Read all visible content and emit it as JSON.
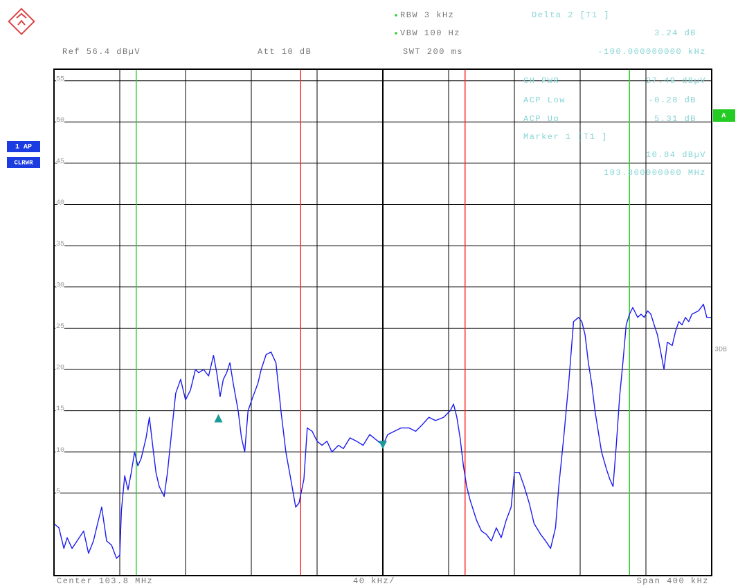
{
  "chart_data": {
    "type": "line",
    "annotations": {
      "rbw": "RBW 3 kHz",
      "vbw": "VBW 100 Hz",
      "swt": "SWT 200 ms",
      "ref": "Ref 56.4 dBµV",
      "att": "Att 10 dB",
      "delta_title": "Delta 2 [T1 ]",
      "delta_value": "3.24 dB",
      "delta_freq": "-100.000000000 kHz",
      "ch_pwr_label": "CH PWR",
      "ch_pwr_value": "27.49 dBµV",
      "acp_low_label": "ACP Low",
      "acp_low_value": "-0.28 dB",
      "acp_up_label": "ACP Up",
      "acp_up_value": "5.31 dB",
      "marker_title": "Marker 1 [T1 ]",
      "marker_value": "10.84 dBµV",
      "marker_freq": "103.800000000 MHz",
      "trace_mode_1": "1 AP",
      "trace_mode_2": "CLRWR",
      "screen": "A",
      "side_label": "3DB",
      "center": "Center 103.8 MHz",
      "per_div": "40 kHz/",
      "span": "Span 400 kHz"
    },
    "x": [
      103.6,
      103.603,
      103.606,
      103.608,
      103.611,
      103.614,
      103.618,
      103.621,
      103.624,
      103.627,
      103.629,
      103.632,
      103.635,
      103.638,
      103.64,
      103.641,
      103.643,
      103.645,
      103.647,
      103.649,
      103.651,
      103.653,
      103.656,
      103.658,
      103.66,
      103.662,
      103.664,
      103.667,
      103.669,
      103.672,
      103.674,
      103.677,
      103.68,
      103.683,
      103.686,
      103.688,
      103.691,
      103.694,
      103.697,
      103.699,
      103.701,
      103.703,
      103.705,
      103.707,
      103.709,
      103.712,
      103.714,
      103.716,
      103.718,
      103.721,
      103.724,
      103.726,
      103.729,
      103.732,
      103.735,
      103.738,
      103.741,
      103.744,
      103.747,
      103.749,
      103.752,
      103.754,
      103.757,
      103.76,
      103.763,
      103.766,
      103.769,
      103.773,
      103.776,
      103.78,
      103.784,
      103.788,
      103.792,
      103.797,
      103.8,
      103.803,
      103.807,
      103.811,
      103.816,
      103.82,
      103.824,
      103.828,
      103.832,
      103.837,
      103.841,
      103.843,
      103.845,
      103.847,
      103.849,
      103.851,
      103.853,
      103.857,
      103.86,
      103.863,
      103.866,
      103.869,
      103.872,
      103.875,
      103.878,
      103.88,
      103.883,
      103.886,
      103.889,
      103.892,
      103.896,
      103.899,
      103.902,
      103.905,
      103.907,
      103.91,
      103.913,
      103.916,
      103.919,
      103.921,
      103.923,
      103.925,
      103.927,
      103.929,
      103.931,
      103.933,
      103.936,
      103.938,
      103.94,
      103.942,
      103.944,
      103.946,
      103.948,
      103.95,
      103.952,
      103.955,
      103.957,
      103.959,
      103.961,
      103.963,
      103.965,
      103.967,
      103.969,
      103.971,
      103.973,
      103.976,
      103.978,
      103.98,
      103.982,
      103.984,
      103.986,
      103.988,
      103.992,
      103.995,
      103.997,
      104.0
    ],
    "series": [
      {
        "color": "#1c1cf0",
        "values": [
          1.3,
          0.8,
          -1.7,
          -0.4,
          -1.7,
          -0.8,
          0.4,
          -2.3,
          -0.8,
          1.7,
          3.3,
          -0.8,
          -1.3,
          -2.9,
          -2.5,
          2.9,
          7.1,
          5.4,
          7.5,
          10,
          8.3,
          9.2,
          11.7,
          14.2,
          10.8,
          7.5,
          5.8,
          4.6,
          7.5,
          13.3,
          17.1,
          18.8,
          16.3,
          17.5,
          20,
          19.6,
          20,
          19.2,
          21.7,
          19.6,
          16.7,
          18.8,
          19.6,
          20.8,
          18.3,
          15,
          11.7,
          10,
          15,
          16.7,
          18.3,
          20,
          21.8,
          22.1,
          20.8,
          15,
          10,
          6.7,
          3.3,
          3.8,
          6.7,
          12.9,
          12.5,
          11.3,
          10.8,
          11.3,
          10,
          10.8,
          10.4,
          11.7,
          11.3,
          10.8,
          12.1,
          11.3,
          10.8,
          12.1,
          12.5,
          12.9,
          12.9,
          12.5,
          13.3,
          14.2,
          13.8,
          14.2,
          15,
          15.8,
          14.2,
          11.7,
          8.3,
          5.8,
          4.2,
          1.7,
          0.4,
          0,
          -0.8,
          0.8,
          -0.4,
          1.7,
          3.3,
          7.5,
          7.5,
          5.8,
          3.8,
          1.3,
          0,
          -0.8,
          -1.7,
          0.8,
          5.8,
          11.7,
          18.3,
          25.8,
          26.3,
          25.8,
          24.2,
          20.8,
          18.3,
          15,
          12.5,
          10,
          7.9,
          6.7,
          5.8,
          10.8,
          16.7,
          20.8,
          25.4,
          26.7,
          27.5,
          26.3,
          26.7,
          26.3,
          27.1,
          26.7,
          25.4,
          24.2,
          22.1,
          20,
          23.3,
          22.9,
          24.6,
          25.8,
          25.4,
          26.3,
          25.8,
          26.7,
          27.1,
          27.9,
          26.3,
          26.3
        ]
      }
    ],
    "channel_lines": [
      {
        "x": 103.65,
        "color": "#33cc33"
      },
      {
        "x": 103.75,
        "color": "#ff2a2a"
      },
      {
        "x": 103.85,
        "color": "#ff2a2a"
      },
      {
        "x": 103.95,
        "color": "#33cc33"
      }
    ],
    "markers": [
      {
        "x": 103.8,
        "y": 10.84,
        "shape": "down",
        "color": "#1a9a9a"
      },
      {
        "x": 103.7,
        "y": 14.08,
        "shape": "up",
        "color": "#1a9a9a"
      }
    ],
    "xlim": [
      103.6,
      104.0
    ],
    "x_divisions": 10,
    "ylim": [
      -5,
      56.4
    ],
    "yticks": [
      5,
      10,
      15,
      20,
      25,
      30,
      35,
      40,
      45,
      50,
      55
    ],
    "grid": true
  }
}
